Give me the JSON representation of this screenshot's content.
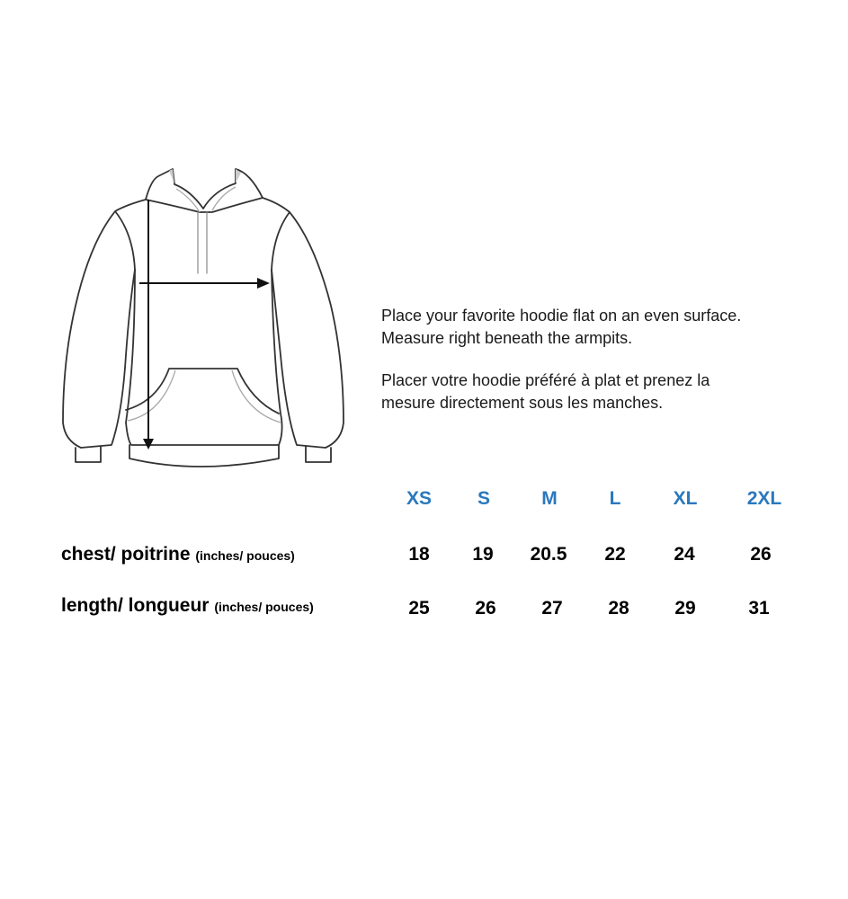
{
  "instructions": {
    "en_line1": "Place your favorite hoodie flat on an even surface.",
    "en_line2": "Measure right beneath the armpits.",
    "fr_line1": "Placer votre hoodie préféré à plat et prenez la",
    "fr_line2": "mesure directement sous les manches."
  },
  "sizes": [
    "XS",
    "S",
    "M",
    "L",
    "XL",
    "2XL"
  ],
  "rows": [
    {
      "label": "chest/ poitrine",
      "unit": "(inches/ pouces)",
      "values": [
        "18",
        "19",
        "20.5",
        "22",
        "24",
        "26"
      ]
    },
    {
      "label": "length/ longueur",
      "unit": "(inches/ pouces)",
      "values": [
        "25",
        "26",
        "27",
        "28",
        "29",
        "31"
      ]
    }
  ],
  "colors": {
    "size_header": "#2a78bd",
    "text": "#000000"
  },
  "illustration": "hoodie-measurement-diagram"
}
